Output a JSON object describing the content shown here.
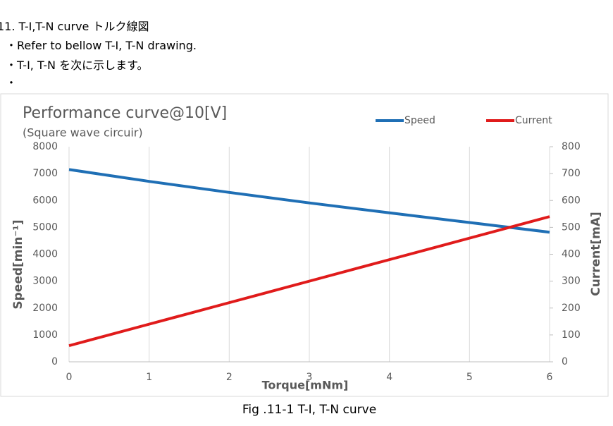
{
  "document": {
    "heading": "11.  T-I,T-N curve  トルク線図",
    "bullets": [
      "・Refer to bellow T-I, T-N drawing.",
      "・T-I, T-N  を次に示します。",
      "・"
    ],
    "caption": "Fig .11-1 T-I, T-N curve"
  },
  "chart_data": {
    "type": "line",
    "title": "Performance curve@10[V]",
    "subtitle": "(Square wave circuir)",
    "xlabel": "Torque[mNm]",
    "ylabel": "Speed[min⁻¹]",
    "y2label": "Current[mA]",
    "x": [
      0,
      1,
      2,
      3,
      4,
      5,
      6
    ],
    "series": [
      {
        "name": "Speed",
        "color": "#1f6fb5",
        "values": [
          7150,
          6710,
          6300,
          5910,
          5540,
          5180,
          4820
        ]
      },
      {
        "name": "Current",
        "color": "#e01b1b",
        "axis": "y2",
        "values": [
          60,
          140,
          220,
          300,
          380,
          460,
          540
        ]
      }
    ],
    "xlim": [
      0,
      6
    ],
    "xticks": [
      0,
      1,
      2,
      3,
      4,
      5,
      6
    ],
    "ylim": [
      0,
      8000
    ],
    "yticks": [
      0,
      1000,
      2000,
      3000,
      4000,
      5000,
      6000,
      7000,
      8000
    ],
    "y2lim": [
      0,
      800
    ],
    "y2ticks": [
      0,
      100,
      200,
      300,
      400,
      500,
      600,
      700,
      800
    ],
    "grid": true,
    "legend": "top"
  }
}
